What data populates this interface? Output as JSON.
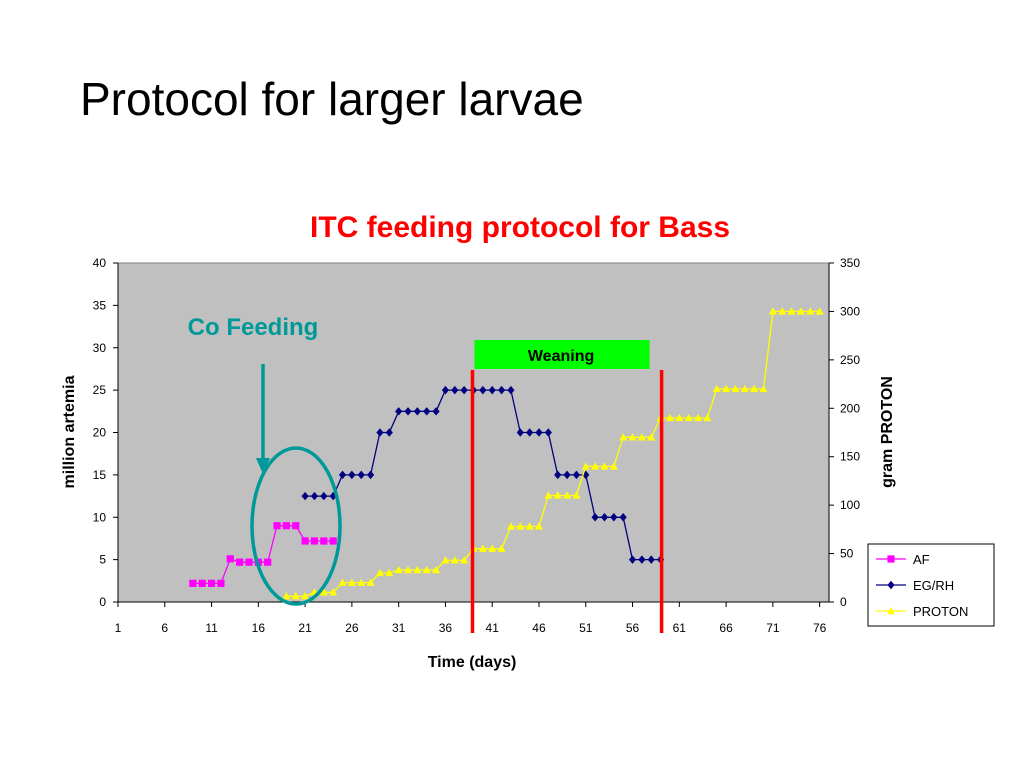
{
  "slide": {
    "title": "Protocol for larger larvae"
  },
  "chart_data": {
    "type": "line",
    "title": "ITC feeding protocol for Bass",
    "xlabel": "Time (days)",
    "ylabel": "million artemia",
    "y2label": "gram PROTON",
    "xlim": [
      1,
      77
    ],
    "ylim": [
      0,
      40
    ],
    "y2lim": [
      0,
      350
    ],
    "xticks": [
      1,
      6,
      11,
      16,
      21,
      26,
      31,
      36,
      41,
      46,
      51,
      56,
      61,
      66,
      71,
      76
    ],
    "yticks": [
      0,
      5,
      10,
      15,
      20,
      25,
      30,
      35,
      40
    ],
    "y2ticks": [
      0,
      50,
      100,
      150,
      200,
      250,
      300,
      350
    ],
    "grid": false,
    "legend": "bottom-right",
    "plot_background": "#c0c0c0",
    "series": [
      {
        "name": "AF",
        "axis": "left",
        "color": "#ff00ff",
        "marker": "square",
        "points": [
          [
            9,
            2.2
          ],
          [
            10,
            2.2
          ],
          [
            11,
            2.2
          ],
          [
            12,
            2.2
          ],
          [
            13,
            5.1
          ],
          [
            14,
            4.7
          ],
          [
            15,
            4.7
          ],
          [
            16,
            4.7
          ],
          [
            17,
            4.7
          ],
          [
            18,
            9
          ],
          [
            19,
            9
          ],
          [
            20,
            9
          ],
          [
            21,
            7.2
          ],
          [
            22,
            7.2
          ],
          [
            23,
            7.2
          ],
          [
            24,
            7.2
          ]
        ]
      },
      {
        "name": "EG/RH",
        "axis": "left",
        "color": "#000080",
        "marker": "diamond",
        "points": [
          [
            21,
            12.5
          ],
          [
            22,
            12.5
          ],
          [
            23,
            12.5
          ],
          [
            24,
            12.5
          ],
          [
            25,
            15
          ],
          [
            26,
            15
          ],
          [
            27,
            15
          ],
          [
            28,
            15
          ],
          [
            29,
            20
          ],
          [
            30,
            20
          ],
          [
            31,
            22.5
          ],
          [
            32,
            22.5
          ],
          [
            33,
            22.5
          ],
          [
            34,
            22.5
          ],
          [
            35,
            22.5
          ],
          [
            36,
            25
          ],
          [
            37,
            25
          ],
          [
            38,
            25
          ],
          [
            39,
            25
          ],
          [
            40,
            25
          ],
          [
            41,
            25
          ],
          [
            42,
            25
          ],
          [
            43,
            25
          ],
          [
            44,
            20
          ],
          [
            45,
            20
          ],
          [
            46,
            20
          ],
          [
            47,
            20
          ],
          [
            48,
            15
          ],
          [
            49,
            15
          ],
          [
            50,
            15
          ],
          [
            51,
            15
          ],
          [
            52,
            10
          ],
          [
            53,
            10
          ],
          [
            54,
            10
          ],
          [
            55,
            10
          ],
          [
            56,
            5
          ],
          [
            57,
            5
          ],
          [
            58,
            5
          ],
          [
            59,
            5
          ]
        ]
      },
      {
        "name": "PROTON",
        "axis": "right",
        "color": "#ffff00",
        "marker": "triangle",
        "points": [
          [
            19,
            6
          ],
          [
            20,
            6
          ],
          [
            21,
            6
          ],
          [
            22,
            10
          ],
          [
            23,
            10
          ],
          [
            24,
            10
          ],
          [
            25,
            20
          ],
          [
            26,
            20
          ],
          [
            27,
            20
          ],
          [
            28,
            20
          ],
          [
            29,
            30
          ],
          [
            30,
            30
          ],
          [
            31,
            33
          ],
          [
            32,
            33
          ],
          [
            33,
            33
          ],
          [
            34,
            33
          ],
          [
            35,
            33
          ],
          [
            36,
            43
          ],
          [
            37,
            43
          ],
          [
            38,
            43
          ],
          [
            39,
            55
          ],
          [
            40,
            55
          ],
          [
            41,
            55
          ],
          [
            42,
            55
          ],
          [
            43,
            78
          ],
          [
            44,
            78
          ],
          [
            45,
            78
          ],
          [
            46,
            78
          ],
          [
            47,
            110
          ],
          [
            48,
            110
          ],
          [
            49,
            110
          ],
          [
            50,
            110
          ],
          [
            51,
            140
          ],
          [
            52,
            140
          ],
          [
            53,
            140
          ],
          [
            54,
            140
          ],
          [
            55,
            170
          ],
          [
            56,
            170
          ],
          [
            57,
            170
          ],
          [
            58,
            170
          ],
          [
            59,
            190
          ],
          [
            60,
            190
          ],
          [
            61,
            190
          ],
          [
            62,
            190
          ],
          [
            63,
            190
          ],
          [
            64,
            190
          ],
          [
            65,
            220
          ],
          [
            66,
            220
          ],
          [
            67,
            220
          ],
          [
            68,
            220
          ],
          [
            69,
            220
          ],
          [
            70,
            220
          ],
          [
            71,
            300
          ],
          [
            72,
            300
          ],
          [
            73,
            300
          ],
          [
            74,
            300
          ],
          [
            75,
            300
          ],
          [
            76,
            300
          ]
        ]
      }
    ],
    "annotations": [
      {
        "text": "Co Feeding",
        "color": "#009999",
        "type": "arrow-to-ellipse"
      },
      {
        "text": "Weaning",
        "color": "#00ff00",
        "type": "box-between-lines",
        "x_start": 39,
        "x_end": 59,
        "line_color": "#ff0000"
      }
    ]
  }
}
